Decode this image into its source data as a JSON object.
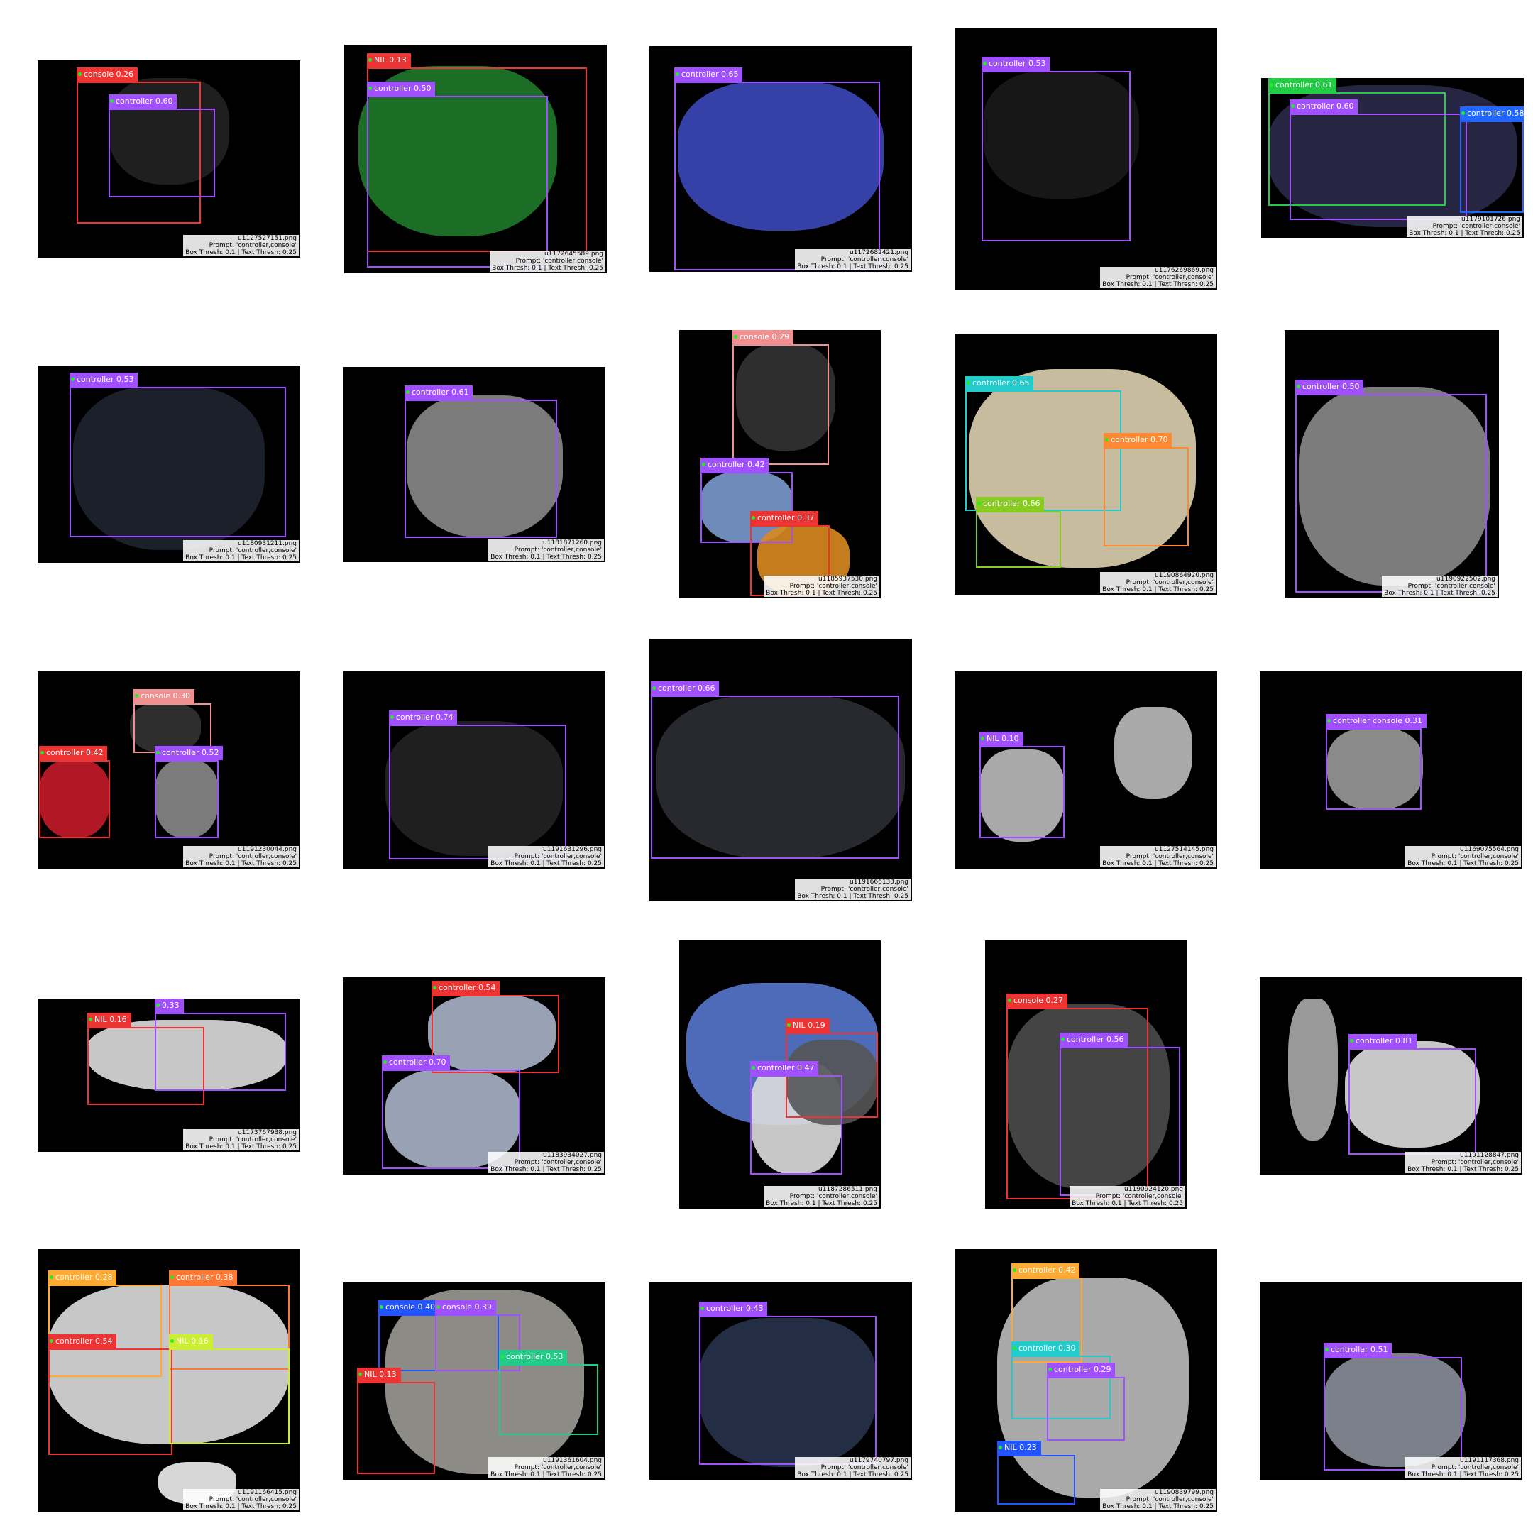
{
  "grid": {
    "prompt_text": "Prompt: 'controller,console'",
    "thresh_text": "Box Thresh: 0.1 | Text Thresh: 0.25"
  },
  "panels": [
    {
      "file": "u1127527151.png",
      "dets": [
        {
          "label": "console 0.26",
          "color": "#ee3333"
        },
        {
          "label": "controller 0.60",
          "color": "#a050ff"
        }
      ]
    },
    {
      "file": "u1172645589.png",
      "dets": [
        {
          "label": "NIL 0.13",
          "color": "#ee3333"
        },
        {
          "label": "controller 0.50",
          "color": "#a050ff"
        }
      ]
    },
    {
      "file": "u1172682421.png",
      "dets": [
        {
          "label": "controller 0.65",
          "color": "#a050ff"
        }
      ]
    },
    {
      "file": "u1176269869.png",
      "dets": [
        {
          "label": "controller 0.53",
          "color": "#a050ff"
        }
      ]
    },
    {
      "file": "u1179101726.png",
      "dets": [
        {
          "label": "controller 0.61",
          "color": "#22cc44"
        },
        {
          "label": "controller 0.60",
          "color": "#a050ff"
        },
        {
          "label": "controller 0.58",
          "color": "#2266ff"
        }
      ]
    },
    {
      "file": "u1180931211.png",
      "dets": [
        {
          "label": "controller 0.53",
          "color": "#a050ff"
        }
      ]
    },
    {
      "file": "u1181871260.png",
      "dets": [
        {
          "label": "controller 0.61",
          "color": "#a050ff"
        }
      ]
    },
    {
      "file": "u1185937530.png",
      "dets": [
        {
          "label": "console 0.29",
          "color": "#f09090"
        },
        {
          "label": "controller 0.42",
          "color": "#a050ff"
        },
        {
          "label": "controller 0.37",
          "color": "#ee3333"
        }
      ]
    },
    {
      "file": "u1190864920.png",
      "dets": [
        {
          "label": "controller 0.65",
          "color": "#22cccc"
        },
        {
          "label": "controller 0.70",
          "color": "#ff8833"
        },
        {
          "label": "controller 0.66",
          "color": "#88cc22"
        }
      ]
    },
    {
      "file": "u1190922502.png",
      "dets": [
        {
          "label": "controller 0.50",
          "color": "#a050ff"
        }
      ]
    },
    {
      "file": "u1191230044.png",
      "dets": [
        {
          "label": "console 0.30",
          "color": "#f09090"
        },
        {
          "label": "controller 0.42",
          "color": "#ee3333"
        },
        {
          "label": "controller 0.52",
          "color": "#a050ff"
        }
      ]
    },
    {
      "file": "u1191631296.png",
      "dets": [
        {
          "label": "controller 0.74",
          "color": "#a050ff"
        }
      ]
    },
    {
      "file": "u1191666133.png",
      "dets": [
        {
          "label": "controller 0.66",
          "color": "#a050ff"
        }
      ]
    },
    {
      "file": "u1127514145.png",
      "dets": [
        {
          "label": "NIL 0.10",
          "color": "#a050ff"
        }
      ]
    },
    {
      "file": "u1169075564.png",
      "dets": [
        {
          "label": "controller console 0.31",
          "color": "#a050ff"
        }
      ]
    },
    {
      "file": "u1173767938.png",
      "dets": [
        {
          "label": "NIL 0.16",
          "color": "#ee3333"
        },
        {
          "label": "0.33",
          "color": "#a050ff"
        }
      ]
    },
    {
      "file": "u1183934027.png",
      "dets": [
        {
          "label": "controller 0.54",
          "color": "#ee3333"
        },
        {
          "label": "controller 0.70",
          "color": "#a050ff"
        }
      ]
    },
    {
      "file": "u1187286511.png",
      "dets": [
        {
          "label": "NIL 0.19",
          "color": "#ee3333"
        },
        {
          "label": "controller 0.47",
          "color": "#a050ff"
        }
      ]
    },
    {
      "file": "u1190924120.png",
      "dets": [
        {
          "label": "console 0.27",
          "color": "#ee3333"
        },
        {
          "label": "controller 0.56",
          "color": "#a050ff"
        }
      ]
    },
    {
      "file": "u1191128847.png",
      "dets": [
        {
          "label": "controller 0.81",
          "color": "#a050ff"
        }
      ]
    },
    {
      "file": "u1191166415.png",
      "dets": [
        {
          "label": "controller 0.28",
          "color": "#ffaa33"
        },
        {
          "label": "controller 0.38",
          "color": "#ff7733"
        },
        {
          "label": "controller 0.54",
          "color": "#ee3333"
        },
        {
          "label": "NIL 0.16",
          "color": "#ccee33"
        }
      ]
    },
    {
      "file": "u1191361604.png",
      "dets": [
        {
          "label": "console 0.40",
          "color": "#2255ff"
        },
        {
          "label": "console 0.39",
          "color": "#a050ff"
        },
        {
          "label": "controller 0.53",
          "color": "#22cc88"
        },
        {
          "label": "NIL 0.13",
          "color": "#ee3333"
        }
      ]
    },
    {
      "file": "u1179740797.png",
      "dets": [
        {
          "label": "controller 0.43",
          "color": "#a050ff"
        }
      ]
    },
    {
      "file": "u1190839799.png",
      "dets": [
        {
          "label": "controller 0.42",
          "color": "#ffaa33"
        },
        {
          "label": "controller 0.30",
          "color": "#22cccc"
        },
        {
          "label": "controller 0.29",
          "color": "#a050ff"
        },
        {
          "label": "NIL 0.23",
          "color": "#2255ff"
        }
      ]
    },
    {
      "file": "u1191117368.png",
      "dets": [
        {
          "label": "controller 0.51",
          "color": "#a050ff"
        }
      ]
    }
  ]
}
